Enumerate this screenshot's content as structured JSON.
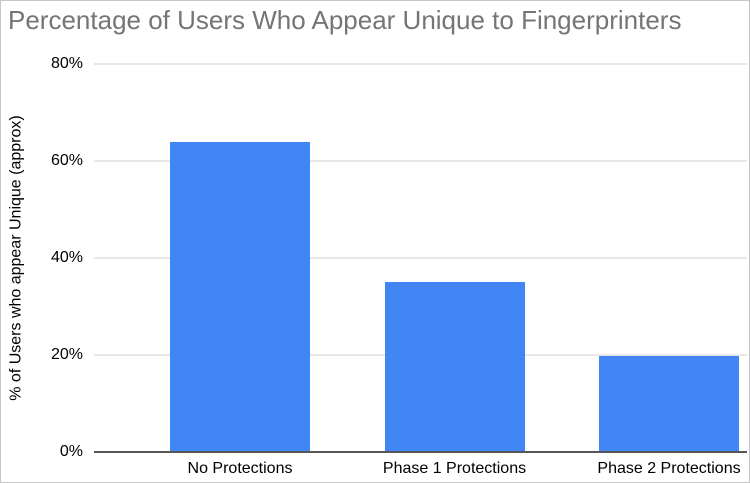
{
  "chart_data": {
    "type": "bar",
    "title": "Percentage of Users Who Appear Unique to Fingerprinters",
    "xlabel": "",
    "ylabel": "% of Users who appear Unique (approx)",
    "categories": [
      "No Protections",
      "Phase 1 Protections",
      "Phase 2 Protections"
    ],
    "values": [
      64,
      35,
      19.8
    ],
    "ylim": [
      0,
      80
    ],
    "yticks": [
      {
        "value": 0,
        "label": "0%"
      },
      {
        "value": 20,
        "label": "20%"
      },
      {
        "value": 40,
        "label": "40%"
      },
      {
        "value": 60,
        "label": "60%"
      },
      {
        "value": 80,
        "label": "80%"
      }
    ],
    "grid": true,
    "legend_position": "none",
    "colors": {
      "bar": "#4285f4",
      "title_text": "#757575",
      "tick_text": "#000000",
      "gridline": "#e8e8e8",
      "axis_line": "#565656",
      "background": "#ffffff",
      "frame_border": "#c6c6c6"
    }
  }
}
